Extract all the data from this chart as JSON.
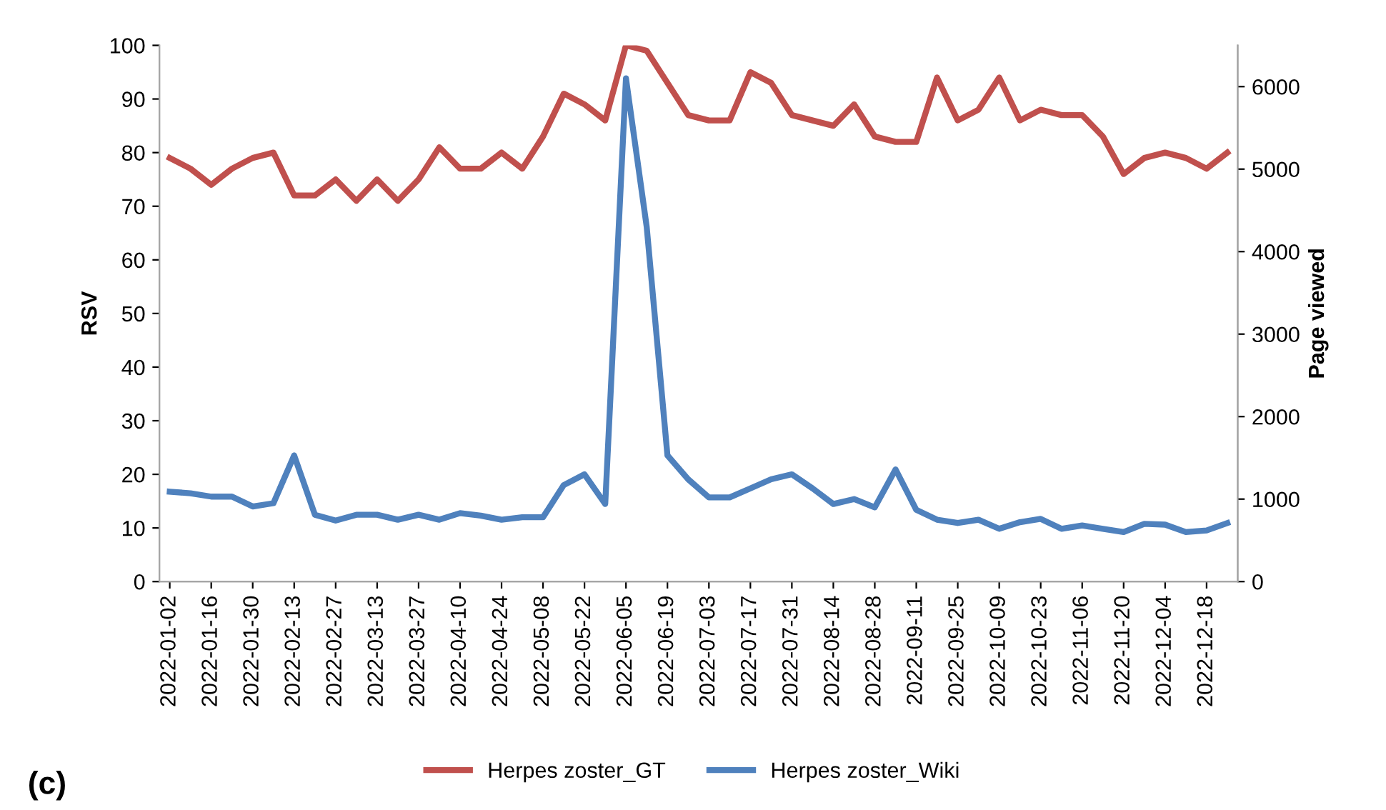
{
  "chart_data": {
    "type": "line",
    "categories": [
      "2022-01-02",
      null,
      "2022-01-16",
      null,
      "2022-01-30",
      null,
      "2022-02-13",
      null,
      "2022-02-27",
      null,
      "2022-03-13",
      null,
      "2022-03-27",
      null,
      "2022-04-10",
      null,
      "2022-04-24",
      null,
      "2022-05-08",
      null,
      "2022-05-22",
      null,
      "2022-06-05",
      null,
      "2022-06-19",
      null,
      "2022-07-03",
      null,
      "2022-07-17",
      null,
      "2022-07-31",
      null,
      "2022-08-14",
      null,
      "2022-08-28",
      null,
      "2022-09-11",
      null,
      "2022-09-25",
      null,
      "2022-10-09",
      null,
      "2022-10-23",
      null,
      "2022-11-06",
      null,
      "2022-11-20",
      null,
      "2022-12-04",
      null,
      "2022-12-18",
      null
    ],
    "series": [
      {
        "name": "Herpes zoster_GT",
        "color": "#c0504d",
        "values": [
          79,
          77,
          74,
          77,
          79,
          80,
          72,
          72,
          75,
          71,
          75,
          71,
          75,
          81,
          77,
          77,
          80,
          77,
          83,
          91,
          89,
          86,
          100,
          99,
          93,
          87,
          86,
          86,
          95,
          93,
          87,
          86,
          85,
          89,
          83,
          82,
          82,
          94,
          86,
          88,
          94,
          86,
          88,
          87,
          87,
          83,
          76,
          79,
          80,
          79,
          77,
          80
        ]
      },
      {
        "name": "Herpes zoster_Wiki",
        "color": "#4f81bd",
        "axis": "y2",
        "values": [
          1090,
          1070,
          1030,
          1030,
          910,
          950,
          1530,
          810,
          740,
          810,
          810,
          750,
          810,
          750,
          830,
          800,
          750,
          780,
          780,
          1170,
          1300,
          940,
          6100,
          4300,
          1530,
          1240,
          1020,
          1020,
          1130,
          1240,
          1300,
          1130,
          940,
          1000,
          900,
          1360,
          870,
          750,
          710,
          750,
          640,
          720,
          760,
          640,
          680,
          640,
          600,
          700,
          690,
          600,
          620,
          710
        ]
      }
    ],
    "ylabel": "RSV",
    "y2label": "Page viewed",
    "ylim": [
      0,
      100
    ],
    "yticks": [
      0,
      10,
      20,
      30,
      40,
      50,
      60,
      70,
      80,
      90,
      100
    ],
    "y2lim": [
      0,
      6500
    ],
    "y2ticks": [
      0,
      1000,
      2000,
      3000,
      4000,
      5000,
      6000
    ],
    "legend": "bottom",
    "grid": false,
    "marker": "none",
    "line_style": "solid",
    "annotations": [
      "(c)"
    ]
  }
}
